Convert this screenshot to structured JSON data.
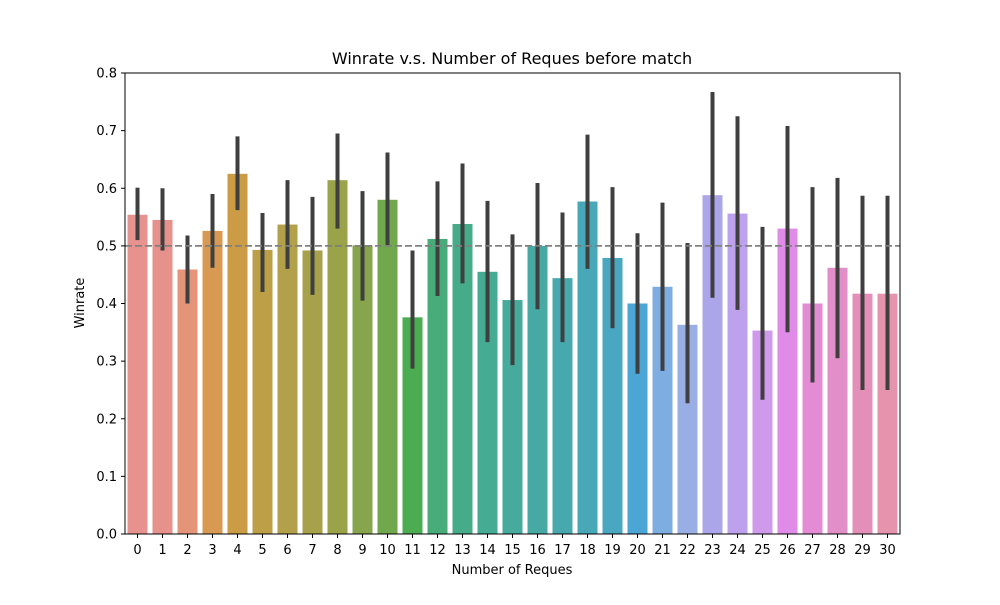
{
  "chart_data": {
    "type": "bar",
    "title": "Winrate v.s. Number of Reques before match",
    "xlabel": "Number of Reques",
    "ylabel": "Winrate",
    "ylim": [
      0,
      0.8
    ],
    "yticks": [
      "0.0",
      "0.1",
      "0.2",
      "0.3",
      "0.4",
      "0.5",
      "0.6",
      "0.7",
      "0.8"
    ],
    "categories": [
      "0",
      "1",
      "2",
      "3",
      "4",
      "5",
      "6",
      "7",
      "8",
      "9",
      "10",
      "11",
      "12",
      "13",
      "14",
      "15",
      "16",
      "17",
      "18",
      "19",
      "20",
      "21",
      "22",
      "23",
      "24",
      "25",
      "26",
      "27",
      "28",
      "29",
      "30"
    ],
    "values": [
      0.554,
      0.545,
      0.459,
      0.526,
      0.625,
      0.493,
      0.537,
      0.492,
      0.614,
      0.501,
      0.58,
      0.376,
      0.512,
      0.538,
      0.455,
      0.406,
      0.5,
      0.444,
      0.577,
      0.479,
      0.4,
      0.429,
      0.363,
      0.588,
      0.556,
      0.353,
      0.53,
      0.4,
      0.462,
      0.417,
      0.417
    ],
    "error_low": [
      0.51,
      0.492,
      0.4,
      0.462,
      0.562,
      0.42,
      0.46,
      0.415,
      0.53,
      0.405,
      0.5,
      0.287,
      0.413,
      0.435,
      0.333,
      0.293,
      0.39,
      0.333,
      0.46,
      0.357,
      0.278,
      0.283,
      0.227,
      0.41,
      0.389,
      0.233,
      0.35,
      0.263,
      0.305,
      0.25,
      0.25
    ],
    "error_high": [
      0.601,
      0.6,
      0.518,
      0.59,
      0.69,
      0.557,
      0.614,
      0.585,
      0.695,
      0.595,
      0.662,
      0.492,
      0.612,
      0.643,
      0.578,
      0.52,
      0.609,
      0.558,
      0.693,
      0.602,
      0.522,
      0.575,
      0.505,
      0.767,
      0.725,
      0.533,
      0.708,
      0.602,
      0.618,
      0.587,
      0.587
    ],
    "reference_line": 0.5,
    "grid": false,
    "legend": "none",
    "colors": [
      "#e8928f",
      "#e6918c",
      "#e39479",
      "#d89a53",
      "#cb9b46",
      "#bd9f47",
      "#b2a04b",
      "#a7a14b",
      "#9aa24a",
      "#87a54d",
      "#71a84e",
      "#4bac52",
      "#48ac7a",
      "#46ab88",
      "#45ab93",
      "#46aa9c",
      "#46a9a4",
      "#47a8ad",
      "#48a8b7",
      "#4aa7c2",
      "#4ba6d6",
      "#7eade2",
      "#98aee4",
      "#aba5e9",
      "#bda1ec",
      "#cf9aec",
      "#df8be7",
      "#e48bd6",
      "#e28ec8",
      "#e48fba",
      "#e693ad"
    ],
    "error_bar_color": "#3f3f3f",
    "reference_line_color": "#808080"
  }
}
